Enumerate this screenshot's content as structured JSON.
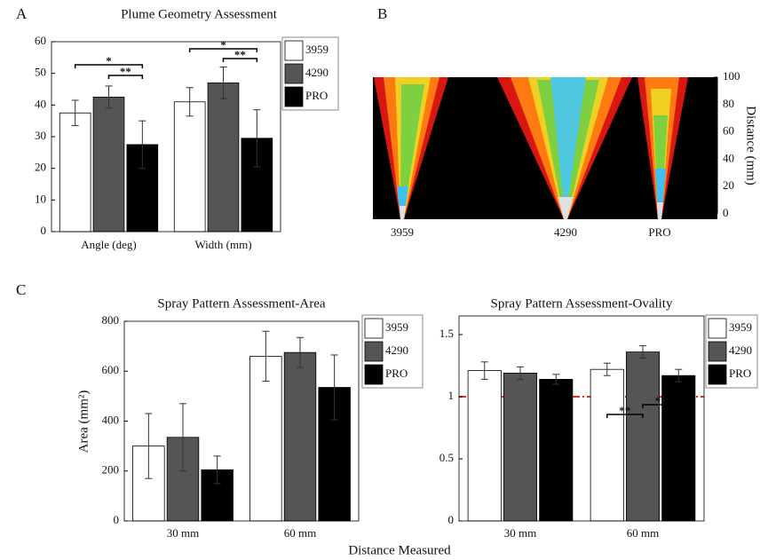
{
  "chart_data": [
    {
      "type": "bar",
      "panel": "A",
      "title": "Plume Geometry Assessment",
      "categories": [
        "Angle (deg)",
        "Width (mm)"
      ],
      "series": [
        {
          "name": "3959",
          "color": "#ffffff",
          "values": [
            37.5,
            41
          ],
          "errors": [
            4,
            4.5
          ]
        },
        {
          "name": "4290",
          "color": "#555555",
          "values": [
            42.5,
            47
          ],
          "errors": [
            3.5,
            5
          ]
        },
        {
          "name": "PRO",
          "color": "#000000",
          "values": [
            27.5,
            29.5
          ],
          "errors": [
            7.5,
            9
          ]
        }
      ],
      "ylim": [
        0,
        60
      ],
      "yticks": [
        0,
        10,
        20,
        30,
        40,
        50,
        60
      ],
      "legend": "upper right",
      "annotations": [
        "*",
        "**",
        "*",
        "**"
      ]
    },
    {
      "type": "image",
      "panel": "B",
      "categories": [
        "3959",
        "4290",
        "PRO"
      ],
      "ylabel": "Distance (mm)",
      "ylim": [
        0,
        100
      ],
      "yticks": [
        0,
        20,
        40,
        60,
        80,
        100
      ]
    },
    {
      "type": "bar",
      "panel": "C",
      "title": "Spray Pattern Assessment-Area",
      "ylabel": "Area (mm²)",
      "xlabel": "Distance Measured",
      "categories": [
        "30 mm",
        "60 mm"
      ],
      "series": [
        {
          "name": "3959",
          "color": "#ffffff",
          "values": [
            300,
            660
          ],
          "errors": [
            130,
            100
          ]
        },
        {
          "name": "4290",
          "color": "#555555",
          "values": [
            335,
            675
          ],
          "errors": [
            135,
            60
          ]
        },
        {
          "name": "PRO",
          "color": "#000000",
          "values": [
            205,
            535
          ],
          "errors": [
            55,
            130
          ]
        }
      ],
      "ylim": [
        0,
        800
      ],
      "yticks": [
        0,
        200,
        400,
        600,
        800
      ],
      "legend": "upper right"
    },
    {
      "type": "bar",
      "title": "Spray Pattern Assessment-Ovality",
      "categories": [
        "30 mm",
        "60 mm"
      ],
      "series": [
        {
          "name": "3959",
          "color": "#ffffff",
          "values": [
            1.21,
            1.22
          ],
          "errors": [
            0.07,
            0.05
          ]
        },
        {
          "name": "4290",
          "color": "#555555",
          "values": [
            1.19,
            1.36
          ],
          "errors": [
            0.05,
            0.05
          ]
        },
        {
          "name": "PRO",
          "color": "#000000",
          "values": [
            1.14,
            1.17
          ],
          "errors": [
            0.04,
            0.05
          ]
        }
      ],
      "ylim": [
        0,
        1.65
      ],
      "yticks": [
        0,
        0.5,
        1,
        1.5
      ],
      "refline": 1,
      "refline_color": "#e53020",
      "legend": "upper right",
      "annotations": [
        "**",
        "**"
      ]
    }
  ]
}
